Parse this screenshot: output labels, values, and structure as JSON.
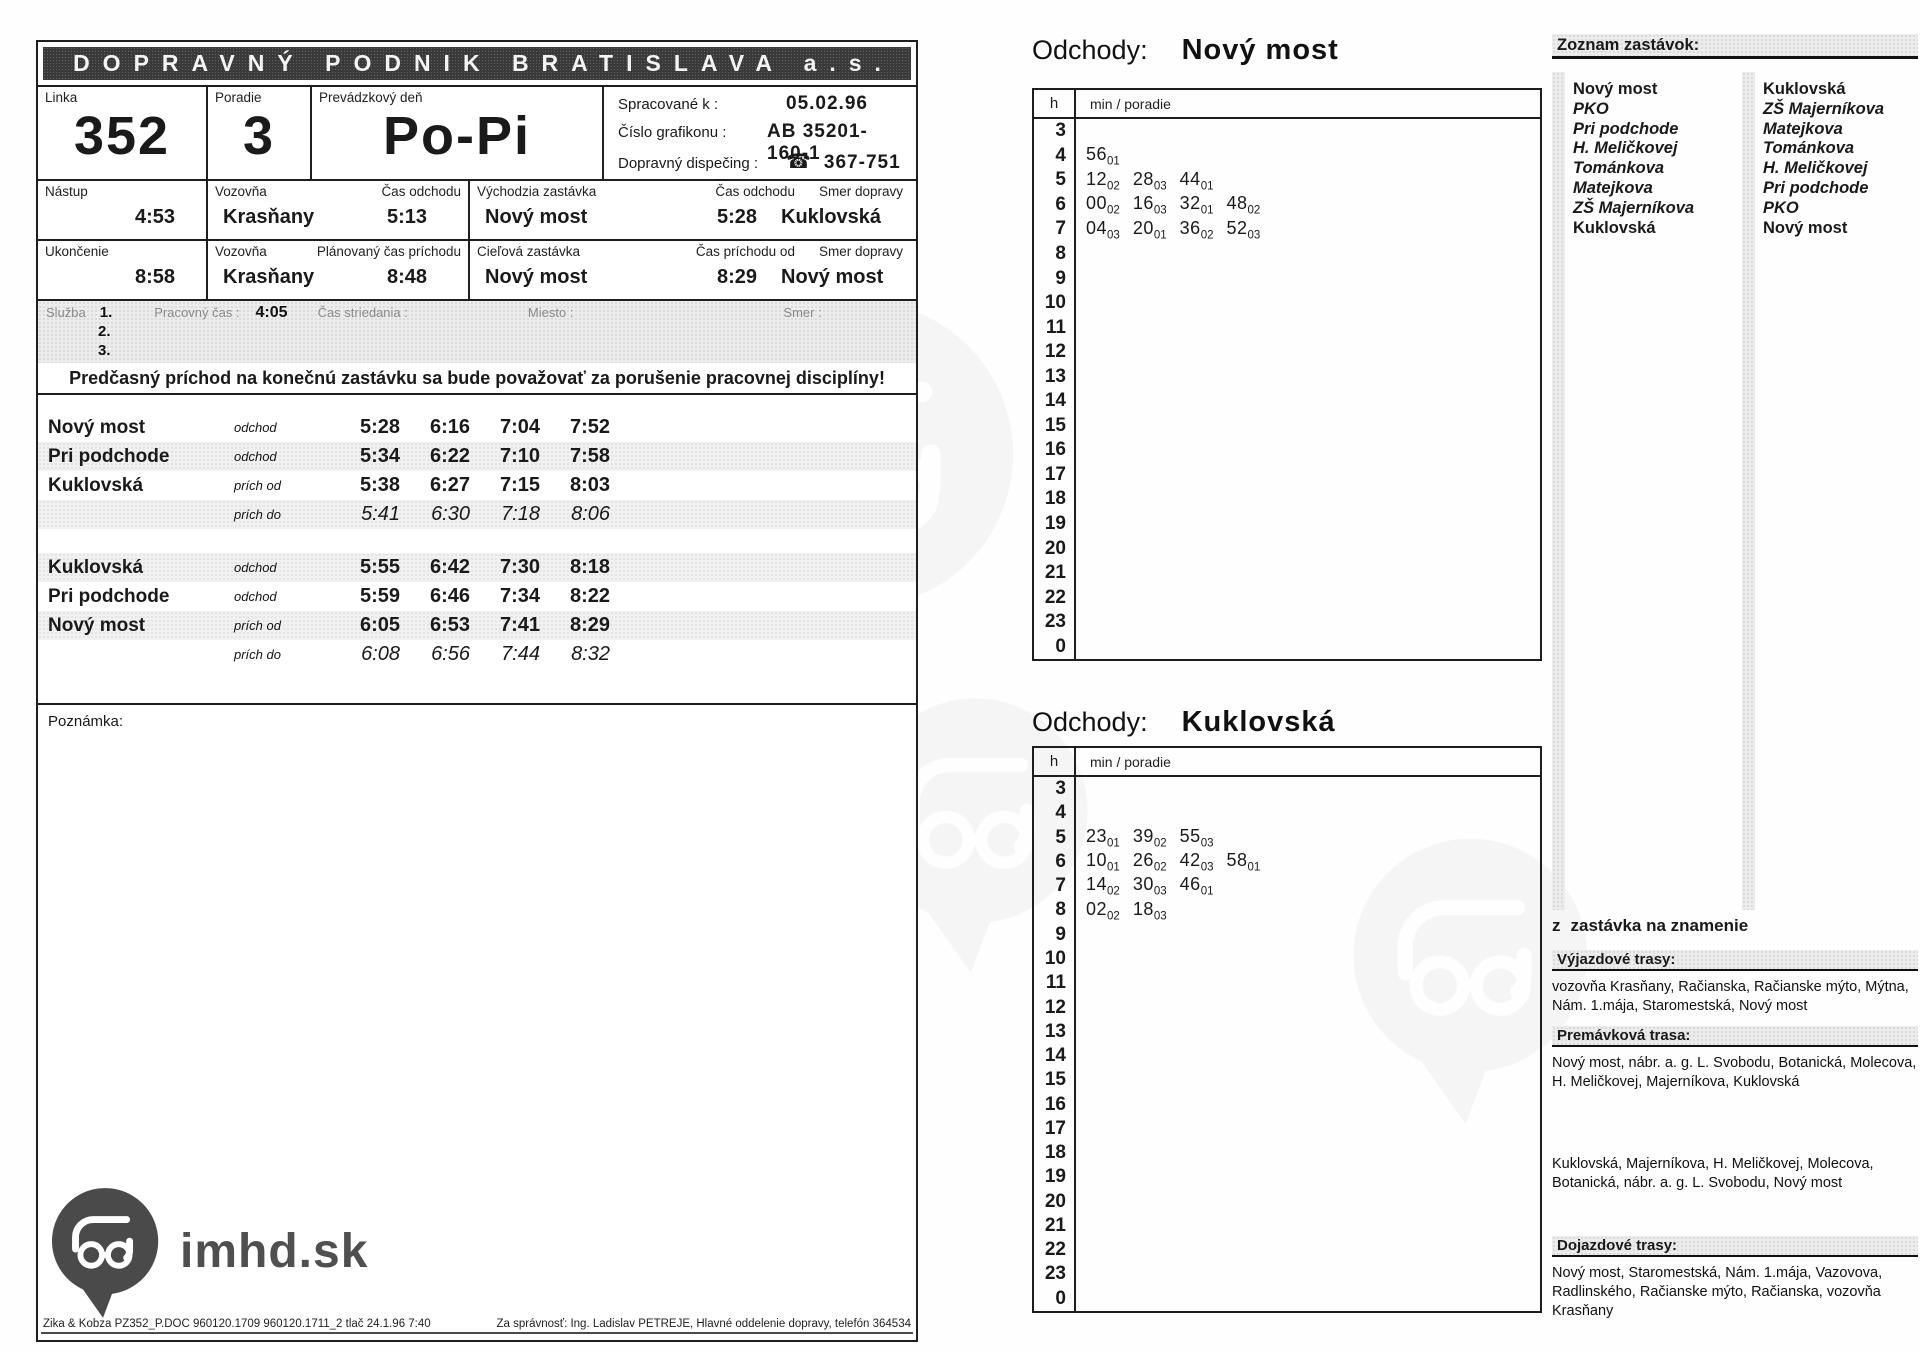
{
  "page": {
    "company": "DOPRAVNÝ PODNIK BRATISLAVA a.s.",
    "header": {
      "linka_label": "Linka",
      "linka": "352",
      "poradie_label": "Poradie",
      "poradie": "3",
      "den_label": "Prevádzkový deň",
      "den": "Po-Pi",
      "spracovane_label": "Spracované k :",
      "spracovane": "05.02.96",
      "grafikon_label": "Číslo grafikonu :",
      "grafikon": "AB 35201-160-1",
      "dispecing_label": "Dopravný dispečing :",
      "phone_icon": "☎",
      "dispecing": "367-751"
    },
    "start_row": {
      "nastup_label": "Nástup",
      "nastup": "4:53",
      "vozovna_label": "Vozovňa",
      "vozovna": "Krasňany",
      "cas_odchodu_label": "Čas odchodu",
      "cas_odchodu": "5:13",
      "vychodzia_label": "Východzia zastávka",
      "vychodzia": "Nový most",
      "cas_odchodu2_label": "Čas odchodu",
      "cas_odchodu2": "5:28",
      "smer_label": "Smer dopravy",
      "smer": "Kuklovská"
    },
    "end_row": {
      "ukoncenie_label": "Ukončenie",
      "ukoncenie": "8:58",
      "vozovna_label": "Vozovňa",
      "vozovna": "Krasňany",
      "planovany_label": "Plánovaný čas príchodu",
      "planovany": "8:48",
      "cielova_label": "Cieľová zastávka",
      "cielova": "Nový most",
      "cas_prichodu_label": "Čas príchodu od",
      "cas_prichodu": "8:29",
      "smer_label": "Smer dopravy",
      "smer": "Nový most"
    },
    "sluzba": {
      "label": "Služba",
      "num1": "1.",
      "num2": "2.",
      "num3": "3.",
      "pracovny_cas_label": "Pracovný čas :",
      "pracovny_cas": "4:05",
      "striedanie_label": "Čas striedania :",
      "miesto_label": "Miesto :",
      "smer_label": "Smer :"
    },
    "warning": "Predčasný príchod na konečnú zastávku sa bude považovať za porušenie pracovnej disciplíny!",
    "poznamka_label": "Poznámka:",
    "footer_left": "Zika & Kobza PZ352_P.DOC 960120.1709 960120.1711_2 tlač 24.1.96 7:40",
    "footer_right": "Za správnosť: Ing. Ladislav PETREJE, Hlavné oddelenie dopravy, telefón 364534",
    "logo_text": "imhd.sk",
    "logo_icon": "bus-pin-logo-icon"
  },
  "timetable": {
    "groups": [
      {
        "rows": [
          {
            "stop": "Nový most",
            "type": "odchod",
            "times": [
              "5:28",
              "6:16",
              "7:04",
              "7:52"
            ],
            "shaded": false,
            "italic": false
          },
          {
            "stop": "Pri podchode",
            "type": "odchod",
            "times": [
              "5:34",
              "6:22",
              "7:10",
              "7:58"
            ],
            "shaded": true,
            "italic": false
          },
          {
            "stop": "Kuklovská",
            "type": "prích od",
            "times": [
              "5:38",
              "6:27",
              "7:15",
              "8:03"
            ],
            "shaded": false,
            "italic": false
          },
          {
            "stop": "",
            "type": "prích do",
            "times": [
              "5:41",
              "6:30",
              "7:18",
              "8:06"
            ],
            "shaded": true,
            "italic": true
          }
        ]
      },
      {
        "rows": [
          {
            "stop": "Kuklovská",
            "type": "odchod",
            "times": [
              "5:55",
              "6:42",
              "7:30",
              "8:18"
            ],
            "shaded": true,
            "italic": false
          },
          {
            "stop": "Pri podchode",
            "type": "odchod",
            "times": [
              "5:59",
              "6:46",
              "7:34",
              "8:22"
            ],
            "shaded": false,
            "italic": false
          },
          {
            "stop": "Nový most",
            "type": "prích od",
            "times": [
              "6:05",
              "6:53",
              "7:41",
              "8:29"
            ],
            "shaded": true,
            "italic": false
          },
          {
            "stop": "",
            "type": "prích do",
            "times": [
              "6:08",
              "6:56",
              "7:44",
              "8:32"
            ],
            "shaded": false,
            "italic": true
          }
        ]
      }
    ]
  },
  "departures": [
    {
      "title_label": "Odchody:",
      "title": "Nový most",
      "col_h": "h",
      "col_min": "min / poradie",
      "hours": [
        "3",
        "4",
        "5",
        "6",
        "7",
        "8",
        "9",
        "10",
        "11",
        "12",
        "13",
        "14",
        "15",
        "16",
        "17",
        "18",
        "19",
        "20",
        "21",
        "22",
        "23",
        "0"
      ],
      "minutes": [
        [],
        [
          [
            "56",
            "01"
          ]
        ],
        [
          [
            "12",
            "02"
          ],
          [
            "28",
            "03"
          ],
          [
            "44",
            "01"
          ]
        ],
        [
          [
            "00",
            "02"
          ],
          [
            "16",
            "03"
          ],
          [
            "32",
            "01"
          ],
          [
            "48",
            "02"
          ]
        ],
        [
          [
            "04",
            "03"
          ],
          [
            "20",
            "01"
          ],
          [
            "36",
            "02"
          ],
          [
            "52",
            "03"
          ]
        ],
        [],
        [],
        [],
        [],
        [],
        [],
        [],
        [],
        [],
        [],
        [],
        [],
        [],
        [],
        [],
        [],
        []
      ]
    },
    {
      "title_label": "Odchody:",
      "title": "Kuklovská",
      "col_h": "h",
      "col_min": "min / poradie",
      "hours": [
        "3",
        "4",
        "5",
        "6",
        "7",
        "8",
        "9",
        "10",
        "11",
        "12",
        "13",
        "14",
        "15",
        "16",
        "17",
        "18",
        "19",
        "20",
        "21",
        "22",
        "23",
        "0"
      ],
      "minutes": [
        [],
        [],
        [
          [
            "23",
            "01"
          ],
          [
            "39",
            "02"
          ],
          [
            "55",
            "03"
          ]
        ],
        [
          [
            "10",
            "01"
          ],
          [
            "26",
            "02"
          ],
          [
            "42",
            "03"
          ],
          [
            "58",
            "01"
          ]
        ],
        [
          [
            "14",
            "02"
          ],
          [
            "30",
            "03"
          ],
          [
            "46",
            "01"
          ]
        ],
        [
          [
            "02",
            "02"
          ],
          [
            "18",
            "03"
          ]
        ],
        [],
        [],
        [],
        [],
        [],
        [],
        [],
        [],
        [],
        [],
        [],
        [],
        [],
        [],
        [],
        []
      ]
    }
  ],
  "stop_list": {
    "title": "Zoznam zastávok:",
    "columns": [
      [
        {
          "text": "Nový most",
          "italic": false
        },
        {
          "text": "PKO",
          "italic": true
        },
        {
          "text": "Pri podchode",
          "italic": true
        },
        {
          "text": "H. Meličkovej",
          "italic": true
        },
        {
          "text": "Tománkova",
          "italic": true
        },
        {
          "text": "Matejkova",
          "italic": true
        },
        {
          "text": "ZŠ Majerníkova",
          "italic": true
        },
        {
          "text": "Kuklovská",
          "italic": false
        }
      ],
      [
        {
          "text": "Kuklovská",
          "italic": false
        },
        {
          "text": "ZŠ Majerníkova",
          "italic": true
        },
        {
          "text": "Matejkova",
          "italic": true
        },
        {
          "text": "Tománkova",
          "italic": true
        },
        {
          "text": "H. Meličkovej",
          "italic": true
        },
        {
          "text": "Pri podchode",
          "italic": true
        },
        {
          "text": "PKO",
          "italic": true
        },
        {
          "text": "Nový most",
          "italic": false
        }
      ]
    ]
  },
  "legend": {
    "symbol": "z",
    "text": "zastávka na znamenie"
  },
  "routes": [
    {
      "title": "Výjazdové trasy:",
      "text": "vozovňa Krasňany, Račianska, Račianske mýto, Mýtna, Nám. 1.mája, Staromestská, Nový most"
    },
    {
      "title": "Premávková trasa:",
      "text": "Nový most, nábr. a. g. L. Svobodu, Botanická, Molecova, H. Meličkovej,  Majerníkova, Kuklovská",
      "text2": "Kuklovská, Majerníkova, H. Meličkovej, Molecova, Botanická, nábr. a. g. L. Svobodu, Nový most"
    },
    {
      "title": "Dojazdové trasy:",
      "text": "Nový most, Staromestská, Nám. 1.mája, Vazovova, Radlinského, Račianske mýto, Račianska, vozovňa Krasňany"
    }
  ]
}
